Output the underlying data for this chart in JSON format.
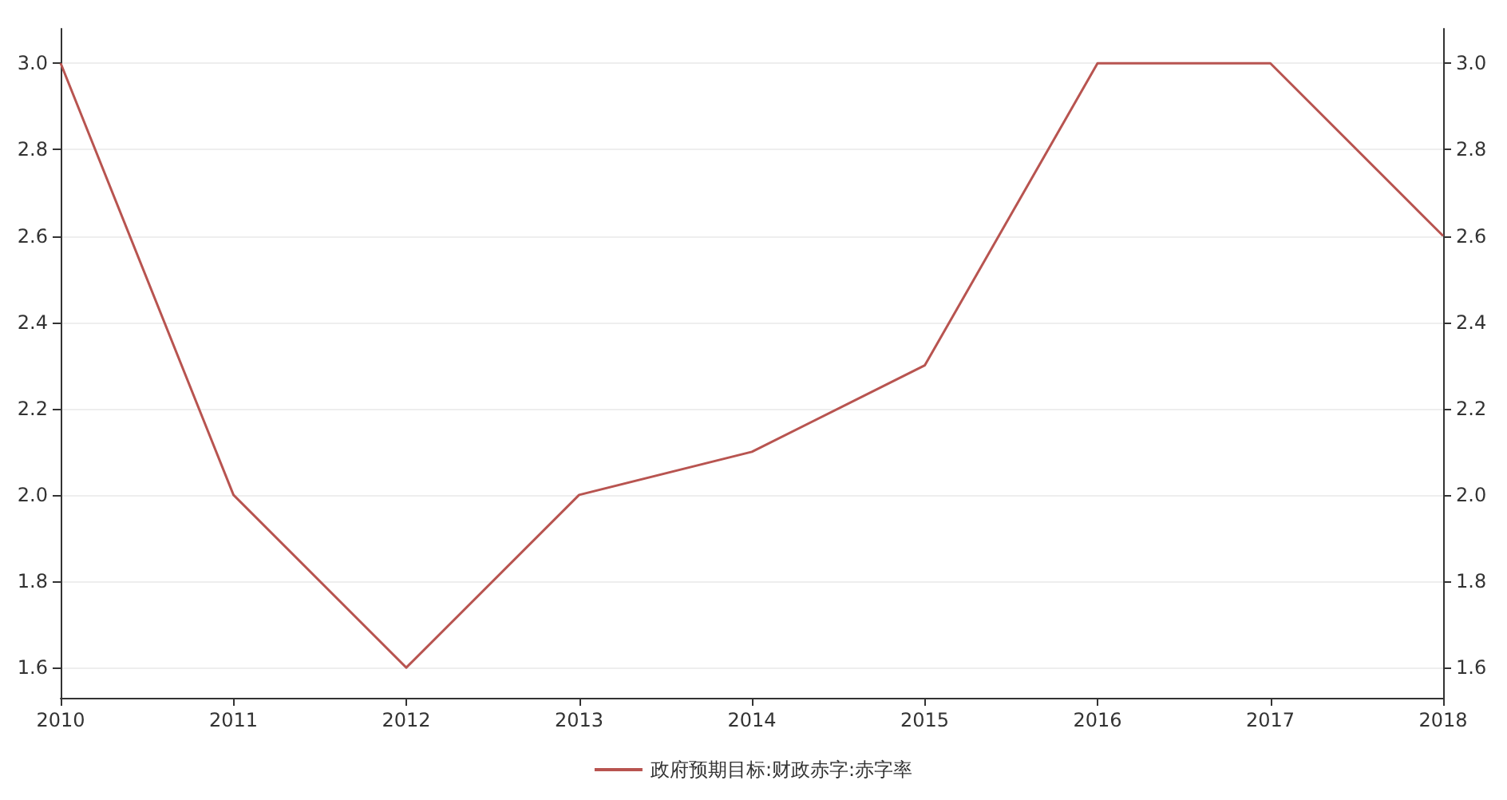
{
  "chart_data": {
    "type": "line",
    "x": [
      2010,
      2011,
      2012,
      2013,
      2014,
      2015,
      2016,
      2017,
      2018
    ],
    "xlim": [
      2010,
      2018
    ],
    "xticks": [
      2010,
      2011,
      2012,
      2013,
      2014,
      2015,
      2016,
      2017,
      2018
    ],
    "series": [
      {
        "name": "政府预期目标:财政赤字:赤字率",
        "color": "#b85450",
        "values": [
          3.0,
          2.0,
          1.6,
          2.0,
          2.1,
          2.3,
          3.0,
          3.0,
          2.6
        ]
      }
    ],
    "ylim": [
      1.53,
      3.08
    ],
    "yticks": [
      {
        "value": 1.6,
        "label": "1.6"
      },
      {
        "value": 1.8,
        "label": "1.8"
      },
      {
        "value": 2.0,
        "label": "2.0"
      },
      {
        "value": 2.2,
        "label": "2.2"
      },
      {
        "value": 2.4,
        "label": "2.4"
      },
      {
        "value": 2.6,
        "label": "2.6"
      },
      {
        "value": 2.8,
        "label": "2.8"
      },
      {
        "value": 3.0,
        "label": "3.0"
      }
    ],
    "y2lim": [
      1.53,
      3.08
    ],
    "y2ticks": [
      {
        "value": 1.6,
        "label": "1.6"
      },
      {
        "value": 1.8,
        "label": "1.8"
      },
      {
        "value": 2.0,
        "label": "2.0"
      },
      {
        "value": 2.2,
        "label": "2.2"
      },
      {
        "value": 2.4,
        "label": "2.4"
      },
      {
        "value": 2.6,
        "label": "2.6"
      },
      {
        "value": 2.8,
        "label": "2.8"
      },
      {
        "value": 3.0,
        "label": "3.0"
      }
    ],
    "grid": "y",
    "legend": "bottom",
    "marker": "none",
    "line_style": "solid"
  }
}
